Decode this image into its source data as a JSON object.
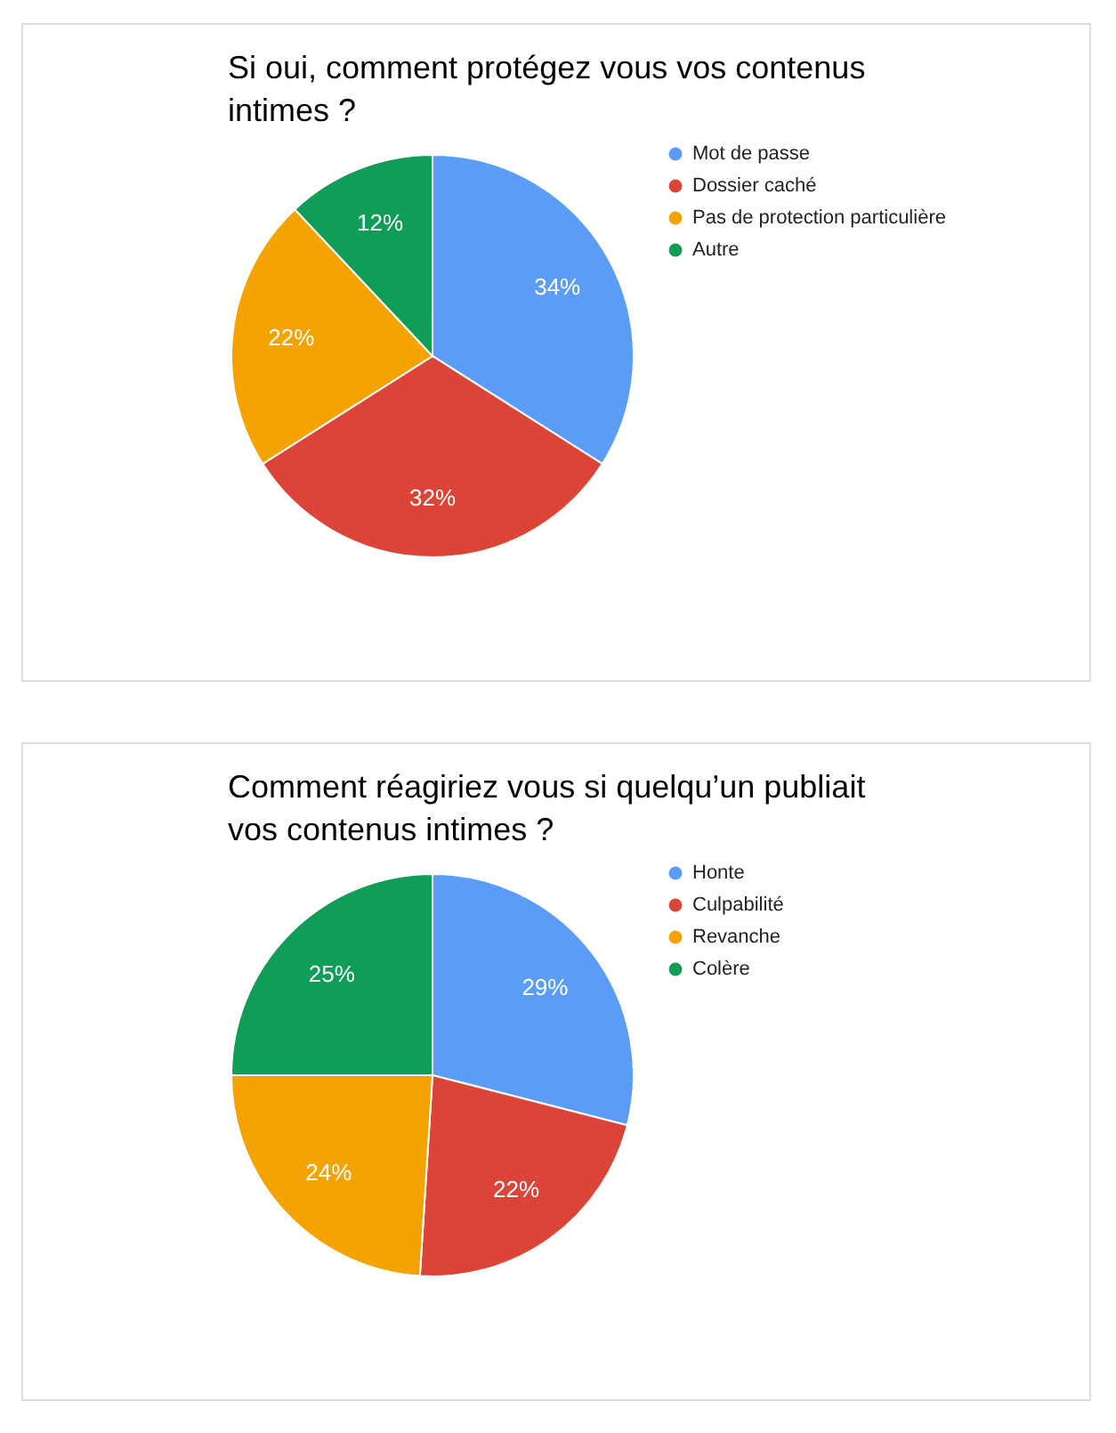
{
  "chart_data": [
    {
      "type": "pie",
      "title": "Si oui, comment protégez vous vos contenus intimes ?",
      "categories": [
        "Mot de passe",
        "Dossier caché",
        "Pas de protection particulière",
        "Autre"
      ],
      "values": [
        34,
        32,
        22,
        12
      ],
      "colors": [
        "#5b9cf6",
        "#dc4437",
        "#f4a300",
        "#0f9d58"
      ],
      "value_labels": [
        "34%",
        "32%",
        "22%",
        "12%"
      ],
      "legend": "right"
    },
    {
      "type": "pie",
      "title": "Comment réagiriez vous si quelqu’un publiait vos contenus intimes ?",
      "categories": [
        "Honte",
        "Culpabilité",
        "Revanche",
        "Colère"
      ],
      "values": [
        29,
        22,
        24,
        25
      ],
      "colors": [
        "#5b9cf6",
        "#dc4437",
        "#f4a300",
        "#0f9d58"
      ],
      "value_labels": [
        "29%",
        "22%",
        "24%",
        "25%"
      ],
      "legend": "right"
    }
  ]
}
